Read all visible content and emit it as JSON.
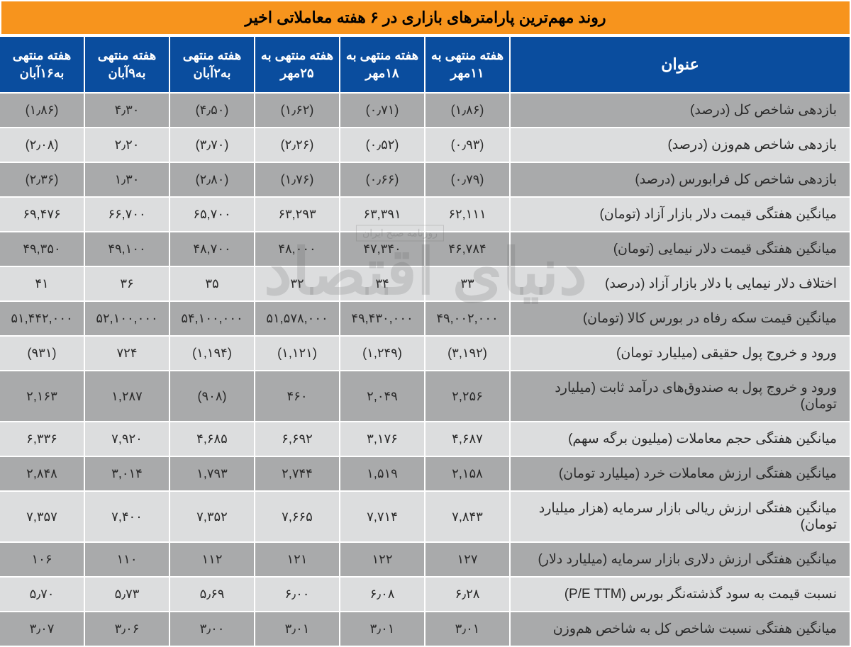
{
  "title": "روند مهم‌ترین پارامترهای بازاری در ۶ هفته معاملاتی اخیر",
  "watermark": "دنیای اقتصاد",
  "watermark_sub": "روزنامه صبح ایران",
  "colors": {
    "title_bg": "#f7941d",
    "header_bg": "#0a4d9e",
    "header_text": "#ffffff",
    "row_odd_bg": "#a9aaab",
    "row_even_bg": "#dcddde",
    "border": "#ffffff",
    "cell_text": "#2a2a2a"
  },
  "columns": [
    "عنوان",
    "هفته منتهی به ۱۱مهر",
    "هفته منتهی به ۱۸مهر",
    "هفته منتهی به ۲۵مهر",
    "هفته منتهی به۲آبان",
    "هفته منتهی به۹آبان",
    "هفته منتهی به۱۶آبان"
  ],
  "rows": [
    {
      "label": "بازدهی شاخص کل (درصد)",
      "cells": [
        "(۱٫۸۶)",
        "(۰٫۷۱)",
        "(۱٫۶۲)",
        "(۴٫۵۰)",
        "۴٫۳۰",
        "(۱٫۸۶)"
      ]
    },
    {
      "label": "بازدهی شاخص هم‌وزن (درصد)",
      "cells": [
        "(۰٫۹۳)",
        "(۰٫۵۲)",
        "(۲٫۲۶)",
        "(۳٫۷۰)",
        "۲٫۲۰",
        "(۲٫۰۸)"
      ]
    },
    {
      "label": "بازدهی شاخص کل فرابورس (درصد)",
      "cells": [
        "(۰٫۷۹)",
        "(۰٫۶۶)",
        "(۱٫۷۶)",
        "(۲٫۸۰)",
        "۱٫۳۰",
        "(۲٫۳۶)"
      ]
    },
    {
      "label": "میانگین هفتگی قیمت دلار بازار آزاد (تومان)",
      "cells": [
        "۶۲,۱۱۱",
        "۶۳,۳۹۱",
        "۶۳,۲۹۳",
        "۶۵,۷۰۰",
        "۶۶,۷۰۰",
        "۶۹,۴۷۶"
      ]
    },
    {
      "label": "میانگین هفتگی قیمت دلار نیمایی (تومان)",
      "cells": [
        "۴۶,۷۸۴",
        "۴۷,۳۴۰",
        "۴۸,۰۰۰",
        "۴۸,۷۰۰",
        "۴۹,۱۰۰",
        "۴۹,۳۵۰"
      ]
    },
    {
      "label": "اختلاف دلار نیمایی با دلار بازار آزاد (درصد)",
      "cells": [
        "۳۳",
        "۳۴",
        "۳۲",
        "۳۵",
        "۳۶",
        "۴۱"
      ]
    },
    {
      "label": "میانگین قیمت سکه رفاه در بورس کالا (تومان)",
      "cells": [
        "۴۹,۰۰۲,۰۰۰",
        "۴۹,۴۳۰,۰۰۰",
        "۵۱,۵۷۸,۰۰۰",
        "۵۴,۱۰۰,۰۰۰",
        "۵۲,۱۰۰,۰۰۰",
        "۵۱,۴۴۲,۰۰۰"
      ]
    },
    {
      "label": "ورود و خروج پول حقیقی (میلیارد تومان)",
      "cells": [
        "(۳,۱۹۲)",
        "(۱,۲۴۹)",
        "(۱,۱۲۱)",
        "(۱,۱۹۴)",
        "۷۲۴",
        "(۹۳۱)"
      ]
    },
    {
      "label": "ورود و خروج پول به صندوق‌های درآمد  ثابت (میلیارد تومان)",
      "cells": [
        "۲,۲۵۶",
        "۲,۰۴۹",
        "۴۶۰",
        "(۹۰۸)",
        "۱,۲۸۷",
        "۲,۱۶۳"
      ]
    },
    {
      "label": "میانگین هفتگی حجم معاملات (میلیون برگه سهم)",
      "cells": [
        "۴,۶۸۷",
        "۳,۱۷۶",
        "۶,۶۹۲",
        "۴,۶۸۵",
        "۷,۹۲۰",
        "۶,۳۳۶"
      ]
    },
    {
      "label": "میانگین هفتگی ارزش معاملات خرد (میلیارد تومان)",
      "cells": [
        "۲,۱۵۸",
        "۱,۵۱۹",
        "۲,۷۴۴",
        "۱,۷۹۳",
        "۳,۰۱۴",
        "۲,۸۴۸"
      ]
    },
    {
      "label": "میانگین هفتگی ارزش ریالی بازار سرمایه  (هزار میلیارد تومان)",
      "cells": [
        "۷,۸۴۳",
        "۷,۷۱۴",
        "۷,۶۶۵",
        "۷,۳۵۲",
        "۷,۴۰۰",
        "۷,۳۵۷"
      ]
    },
    {
      "label": "میانگین هفتگی ارزش دلاری بازار سرمایه (میلیارد دلار)",
      "cells": [
        "۱۲۷",
        "۱۲۲",
        "۱۲۱",
        "۱۱۲",
        "۱۱۰",
        "۱۰۶"
      ]
    },
    {
      "label": "نسبت قیمت به سود گذشته‌نگر بورس (P/E TTM)",
      "cells": [
        "۶٫۲۸",
        "۶٫۰۸",
        "۶٫۰۰",
        "۵٫۶۹",
        "۵٫۷۳",
        "۵٫۷۰"
      ]
    },
    {
      "label": "میانگین هفتگی نسبت شاخص کل به شاخص هم‌وزن",
      "cells": [
        "۳٫۰۱",
        "۳٫۰۱",
        "۳٫۰۱",
        "۳٫۰۰",
        "۳٫۰۶",
        "۳٫۰۷"
      ]
    }
  ]
}
